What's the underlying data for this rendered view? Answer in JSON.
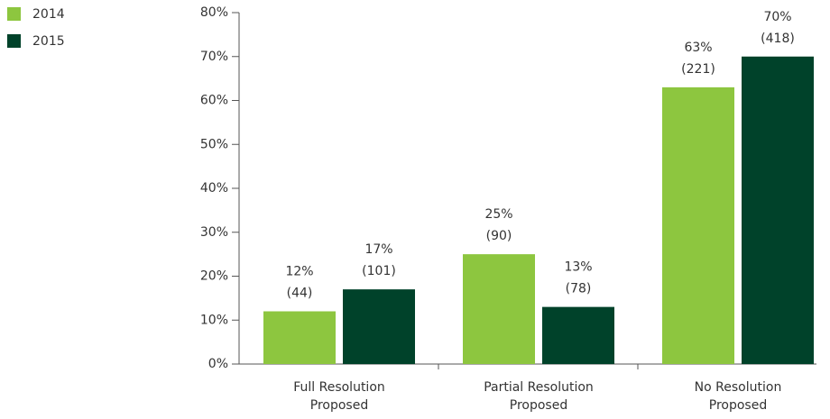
{
  "chart_data": {
    "type": "bar",
    "categories": [
      "Full Resolution Proposed",
      "Partial Resolution Proposed",
      "No Resolution Proposed"
    ],
    "series": [
      {
        "name": "2014",
        "color": "#8dc63f",
        "values": [
          12,
          25,
          63
        ],
        "value_labels": [
          "12%",
          "25%",
          "63%"
        ],
        "count_labels": [
          "(44)",
          "(90)",
          "(221)"
        ]
      },
      {
        "name": "2015",
        "color": "#00422a",
        "values": [
          17,
          13,
          70
        ],
        "value_labels": [
          "17%",
          "13%",
          "70%"
        ],
        "count_labels": [
          "(101)",
          "(78)",
          "(418)"
        ]
      }
    ],
    "ylim": [
      0,
      80
    ],
    "yticks": [
      {
        "value": 0,
        "label": "0%"
      },
      {
        "value": 10,
        "label": "10%"
      },
      {
        "value": 20,
        "label": "20%"
      },
      {
        "value": 30,
        "label": "30%"
      },
      {
        "value": 40,
        "label": "40%"
      },
      {
        "value": 50,
        "label": "50%"
      },
      {
        "value": 60,
        "label": "60%"
      },
      {
        "value": 70,
        "label": "70%"
      },
      {
        "value": 80,
        "label": "80%"
      }
    ],
    "legend": "top-left"
  }
}
